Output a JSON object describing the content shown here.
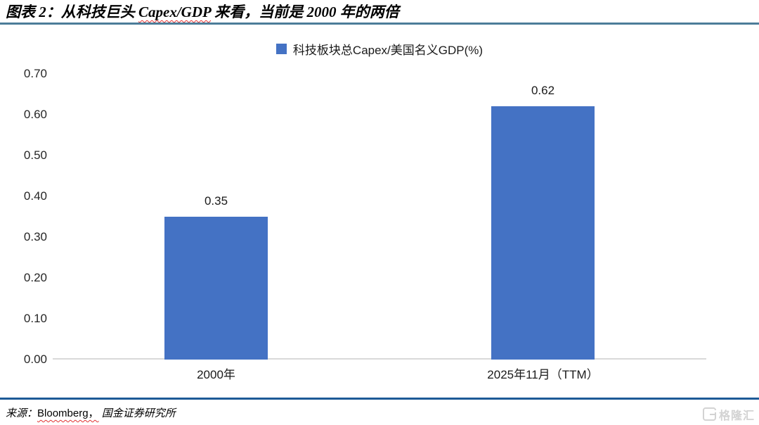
{
  "header": {
    "title_prefix": "图表 2：",
    "title_mid": "从科技巨头 ",
    "title_wavy": "Capex/GDP",
    "title_rest": " 来看，当前是 2000 年的两倍"
  },
  "chart_data": {
    "type": "bar",
    "title": "图表 2：从科技巨头 Capex/GDP 来看，当前是 2000 年的两倍",
    "legend": [
      "科技板块总Capex/美国名义GDP(%)"
    ],
    "legend_position": "top-center",
    "categories": [
      "2000年",
      "2025年11月（TTM）"
    ],
    "values": [
      0.35,
      0.62
    ],
    "value_labels": [
      "0.35",
      "0.62"
    ],
    "xlabel": "",
    "ylabel": "",
    "ylim": [
      0,
      0.7
    ],
    "ytick_interval": 0.1,
    "ytick_labels": [
      "0.00",
      "0.10",
      "0.20",
      "0.30",
      "0.40",
      "0.50",
      "0.60",
      "0.70"
    ],
    "grid": false
  },
  "footer": {
    "source_prefix": "来源：",
    "source_wavy": "Bloomberg，",
    "source_rest": "国金证券研究所"
  },
  "watermark": {
    "text": "格隆汇"
  },
  "colors": {
    "bar": "#4472C4",
    "title_rule": "#4C7D99",
    "footer_rule": "#1D5A97",
    "axis_line": "#D9D9D9",
    "watermark": "#D3D3D3"
  }
}
